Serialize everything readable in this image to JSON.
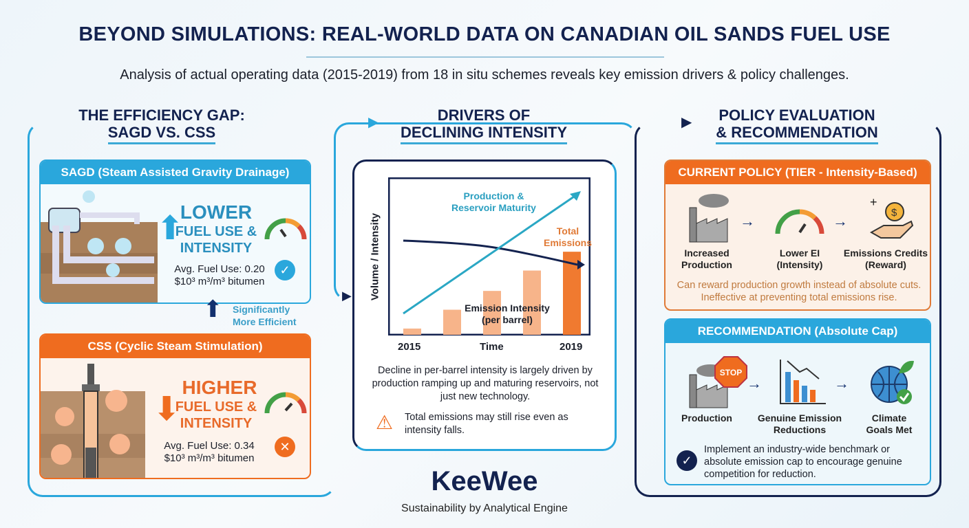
{
  "header": {
    "title": "BEYOND SIMULATIONS: REAL-WORLD DATA ON CANADIAN OIL SANDS FUEL USE",
    "subtitle": "Analysis of actual operating data (2015-2019) from 18 in situ schemes reveals key emission drivers & policy challenges."
  },
  "left": {
    "heading_line1": "THE EFFICIENCY GAP:",
    "heading_line2": "SAGD VS. CSS",
    "sagd": {
      "title": "SAGD (Steam Assisted Gravity Drainage)",
      "big": "LOWER",
      "line2": "FUEL USE &",
      "line3": "INTENSITY",
      "fuel_line1": "Avg. Fuel Use: 0.20",
      "fuel_line2": "$10³ m³/m³ bitumen",
      "status_icon": "check-icon",
      "color": "#2aa7dc"
    },
    "comparison_label_line1": "Significantly",
    "comparison_label_line2": "More Efficient",
    "css": {
      "title": "CSS (Cyclic Steam Stimulation)",
      "big": "HIGHER",
      "line2": "FUEL USE &",
      "line3": "INTENSITY",
      "fuel_line1": "Avg. Fuel Use: 0.34",
      "fuel_line2": "$10³ m³/m³ bitumen",
      "status_icon": "x-icon",
      "color": "#ef6c1f"
    }
  },
  "middle": {
    "heading_line1": "DRIVERS OF",
    "heading_line2": "DECLINING INTENSITY",
    "diagram": {
      "ylabel": "Volume / Intensity",
      "x_start": "2015",
      "x_mid": "Time",
      "x_end": "2019",
      "production_label_line1": "Production &",
      "production_label_line2": "Reservoir Maturity",
      "emissions_label_line1": "Total",
      "emissions_label_line2": "Emissions",
      "intensity_label_line1": "Emission Intensity",
      "intensity_label_line2": "(per barrel)",
      "total_emissions_relative_levels": [
        0.04,
        0.16,
        0.28,
        0.41,
        0.53
      ]
    },
    "description": "Decline in per-barrel intensity is largely driven by production ramping up and maturing reservoirs, not just new technology.",
    "warning": "Total emissions may still rise even as intensity falls."
  },
  "right": {
    "heading_line1": "POLICY EVALUATION",
    "heading_line2": "& RECOMMENDATION",
    "current": {
      "title": "CURRENT POLICY (TIER - Intensity-Based)",
      "steps": [
        {
          "l1": "Increased",
          "l2": "Production"
        },
        {
          "l1": "Lower EI",
          "l2": "(Intensity)"
        },
        {
          "l1": "Emissions Credits",
          "l2": "(Reward)"
        }
      ],
      "note": "Can reward production growth instead of absolute cuts. Ineffective at preventing total emissions rise.",
      "color": "#ef6c1f"
    },
    "recommendation": {
      "title": "RECOMMENDATION (Absolute Cap)",
      "stop_text": "STOP",
      "steps": [
        {
          "l1": "Production",
          "l2": ""
        },
        {
          "l1": "Genuine Emission",
          "l2": "Reductions"
        },
        {
          "l1": "Climate",
          "l2": "Goals Met"
        }
      ],
      "note": "Implement an industry-wide benchmark or absolute emission cap to encourage genuine competition for reduction.",
      "color": "#2aa7dc"
    }
  },
  "footer": {
    "brand": "KeeWee",
    "tagline": "Sustainability by Analytical Engine"
  },
  "colors": {
    "navy": "#13224f",
    "cyan": "#2aa7dc",
    "orange": "#ef6c1f"
  }
}
